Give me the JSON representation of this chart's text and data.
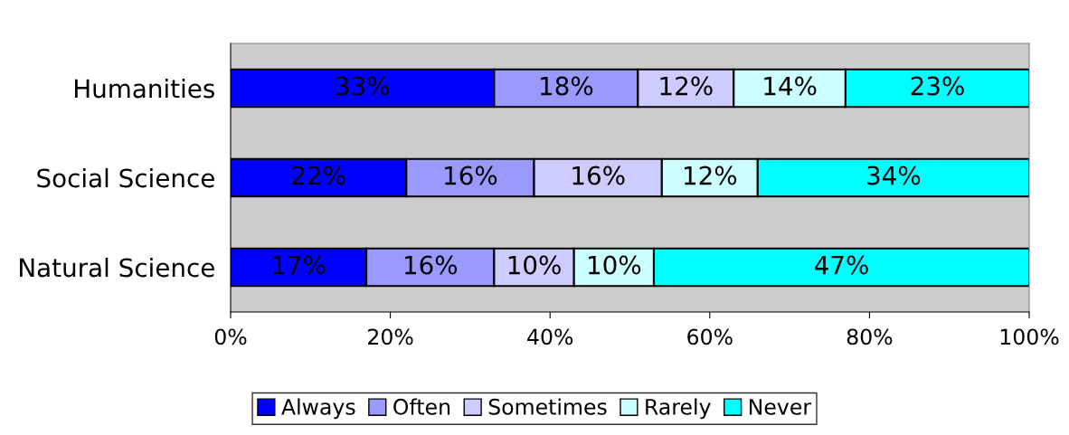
{
  "chart_data": {
    "type": "bar",
    "orientation": "horizontal",
    "stacked": true,
    "categories": [
      "Humanities",
      "Social Science",
      "Natural Science"
    ],
    "series": [
      {
        "name": "Always",
        "color": "#0000ff",
        "values": [
          33,
          22,
          17
        ],
        "value_labels": [
          "33%",
          "22%",
          "17%"
        ]
      },
      {
        "name": "Often",
        "color": "#9999ff",
        "values": [
          18,
          16,
          16
        ],
        "value_labels": [
          "18%",
          "16%",
          "16%"
        ]
      },
      {
        "name": "Sometimes",
        "color": "#ccccff",
        "values": [
          12,
          16,
          10
        ],
        "value_labels": [
          "12%",
          "16%",
          "10%"
        ]
      },
      {
        "name": "Rarely",
        "color": "#ccffff",
        "values": [
          14,
          12,
          10
        ],
        "value_labels": [
          "14%",
          "12%",
          "10%"
        ]
      },
      {
        "name": "Never",
        "color": "#00ffff",
        "values": [
          23,
          34,
          47
        ],
        "value_labels": [
          "23%",
          "34%",
          "47%"
        ]
      }
    ],
    "xlim": [
      0,
      100
    ],
    "xticks": [
      {
        "value": 0,
        "label": "0%"
      },
      {
        "value": 20,
        "label": "20%"
      },
      {
        "value": 40,
        "label": "40%"
      },
      {
        "value": 60,
        "label": "60%"
      },
      {
        "value": 80,
        "label": "80%"
      },
      {
        "value": 100,
        "label": "100%"
      }
    ],
    "grid": false,
    "legend": "bottom"
  }
}
